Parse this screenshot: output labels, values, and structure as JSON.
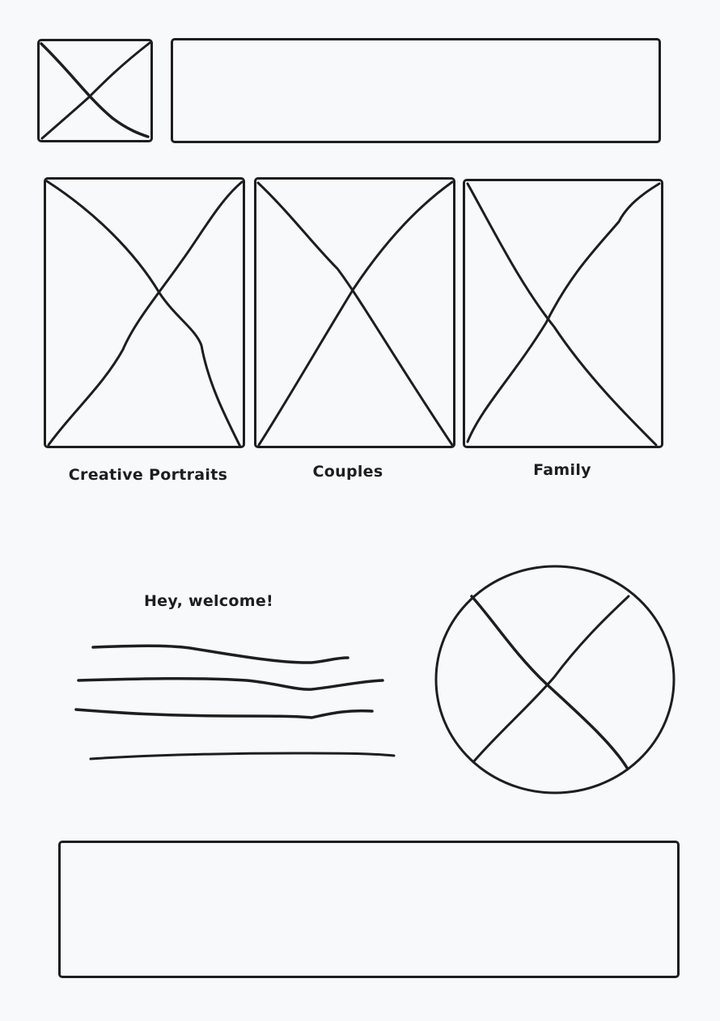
{
  "gallery": {
    "items": [
      {
        "label": "Creative Portraits"
      },
      {
        "label": "Couples"
      },
      {
        "label": "Family"
      }
    ]
  },
  "welcome": {
    "heading": "Hey, welcome!"
  }
}
